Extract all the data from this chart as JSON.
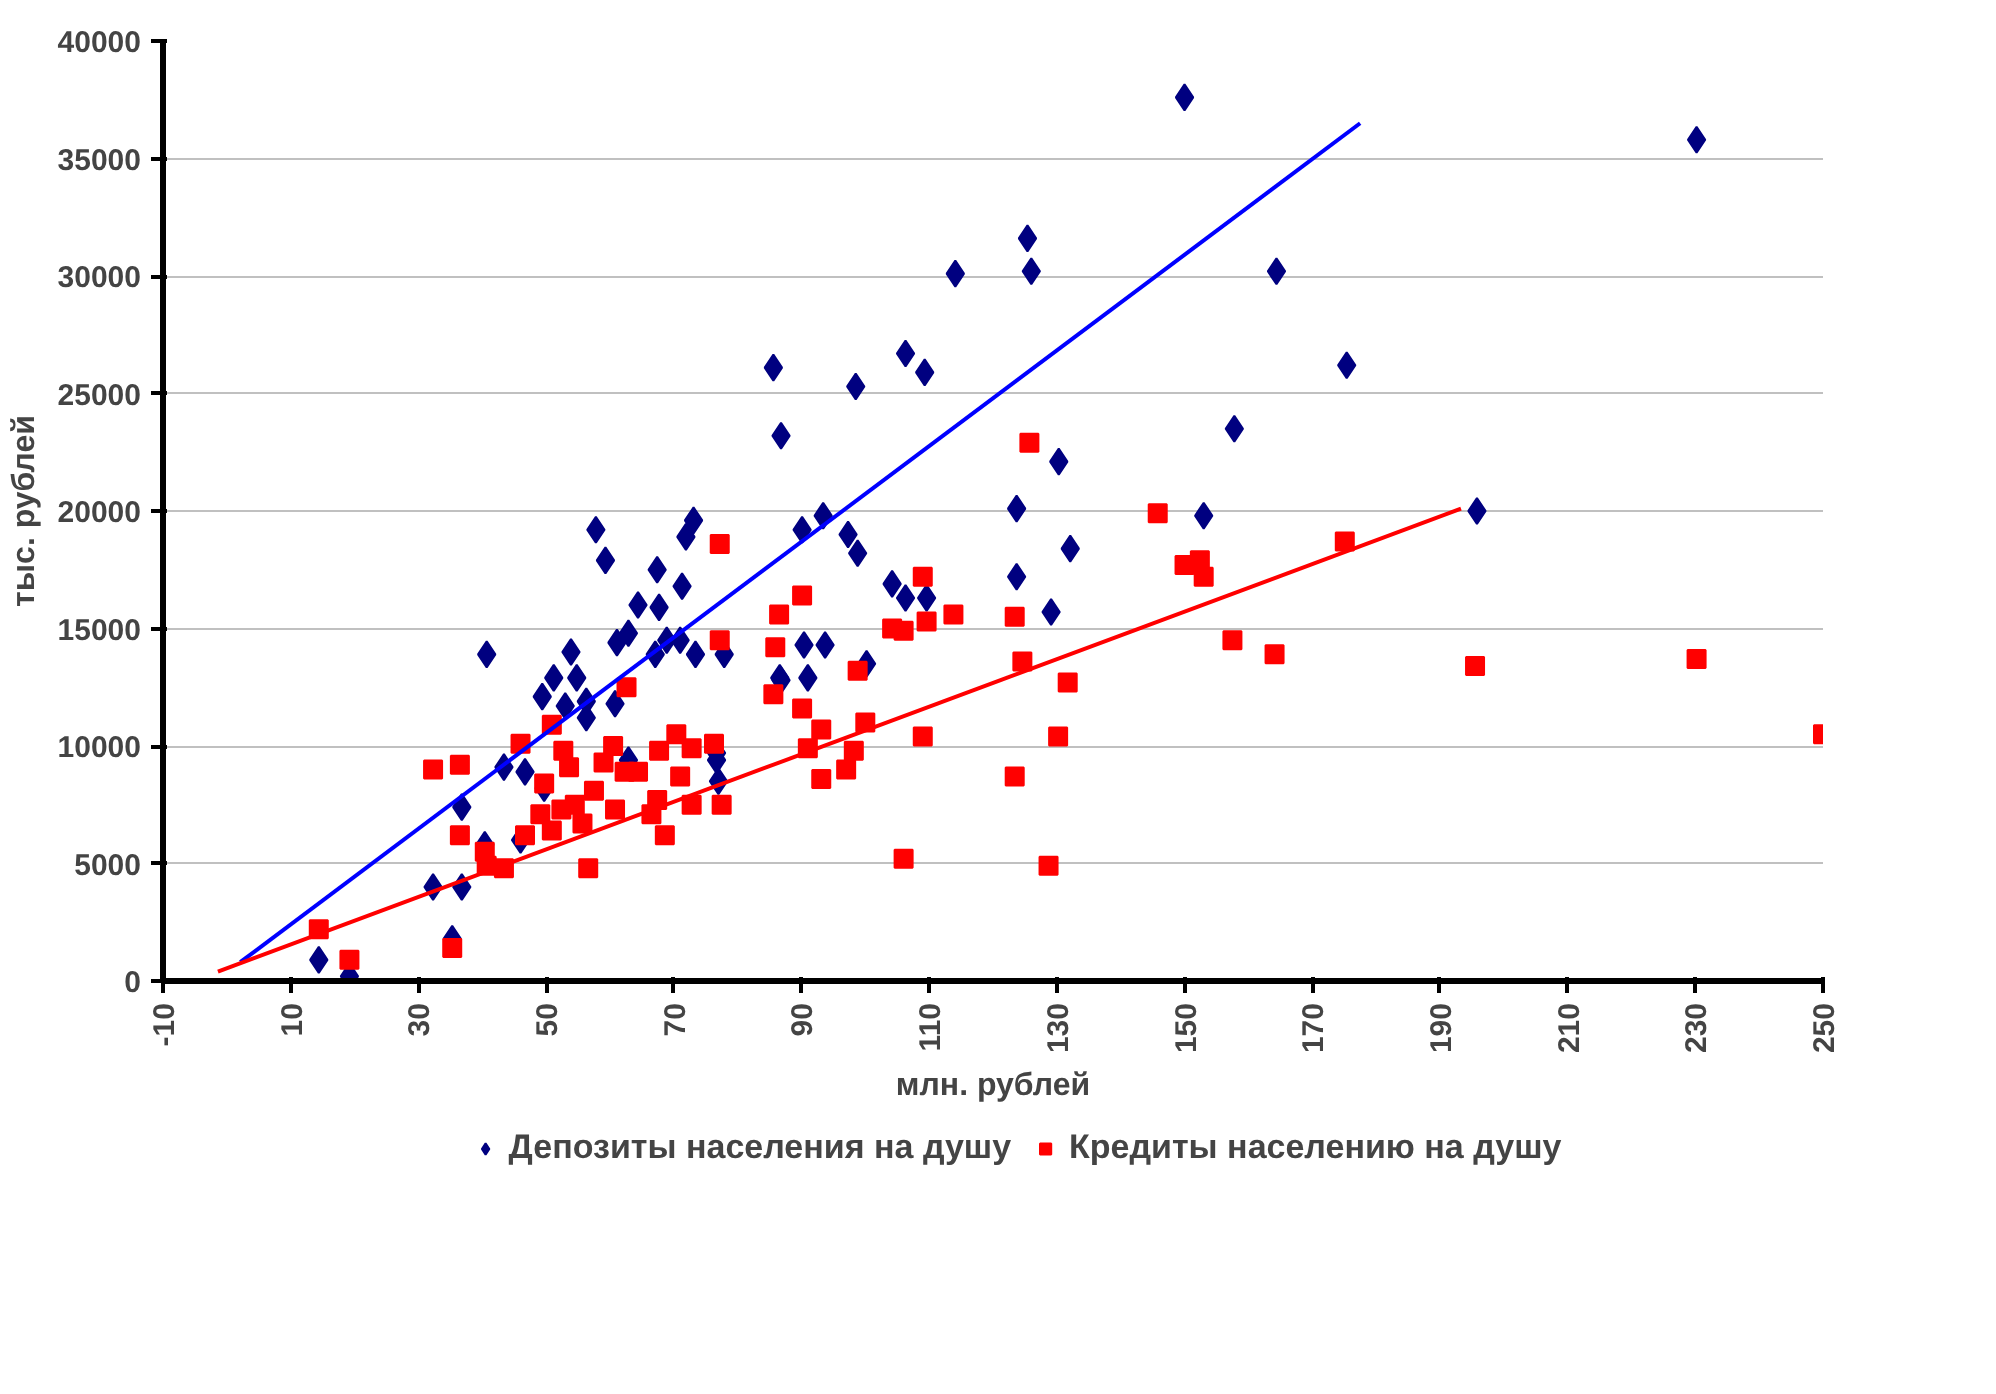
{
  "chart_data": {
    "type": "scatter",
    "xlabel": "млн. рублей",
    "ylabel": "тыс. рублей",
    "xlim": [
      -10,
      250
    ],
    "ylim": [
      0,
      40000
    ],
    "xticks": [
      -10,
      10,
      30,
      50,
      70,
      90,
      110,
      130,
      150,
      170,
      190,
      210,
      230,
      250
    ],
    "yticks": [
      0,
      5000,
      10000,
      15000,
      20000,
      25000,
      30000,
      35000,
      40000
    ],
    "grid": "y",
    "legend": "bottom",
    "series": [
      {
        "name": "Депозиты населения на душу",
        "color": "#000080",
        "marker": "diamond",
        "x": [
          14.4,
          19.2,
          32.3,
          36.8,
          35.3,
          36.8,
          40.7,
          43.4,
          46.7,
          40.4,
          46,
          49.7,
          49.4,
          51.2,
          54.8,
          53.9,
          53,
          56.3,
          56.3,
          60.8,
          57.8,
          59.3,
          61.1,
          62.9,
          64.4,
          67.7,
          67.4,
          71.3,
          73.1,
          71.9,
          67.1,
          68.9,
          71,
          73.4,
          77.9,
          62.9,
          76.7,
          77,
          86.6,
          114.1,
          126,
          125.4,
          85.6,
          86.8,
          98.5,
          106.3,
          109.3,
          123.7,
          130.3,
          157.8,
          132.1,
          123.7,
          129.1,
          93.4,
          90.1,
          97.3,
          98.8,
          104.2,
          106.3,
          109.6,
          90.4,
          93.7,
          86.8,
          91,
          100.2,
          76.7,
          150,
          230.2,
          164.4,
          175.4,
          153,
          195.8
        ],
        "values": [
          900,
          200,
          4000,
          4000,
          1800,
          7400,
          13900,
          9100,
          8900,
          5800,
          6000,
          8200,
          12100,
          12900,
          12900,
          14000,
          11700,
          11900,
          11200,
          11800,
          19200,
          17900,
          14400,
          14800,
          16000,
          15900,
          17500,
          16800,
          19600,
          18900,
          13900,
          14500,
          14500,
          13900,
          13900,
          9400,
          9400,
          8500,
          12900,
          30100,
          30200,
          31600,
          26100,
          23200,
          25300,
          26700,
          25900,
          20100,
          22100,
          23500,
          18400,
          17200,
          15700,
          19800,
          19200,
          19000,
          18200,
          16900,
          16300,
          16300,
          14300,
          14300,
          12800,
          12900,
          13500,
          9700,
          37600,
          35800,
          30200,
          26200,
          19800,
          20000
        ]
      },
      {
        "name": "Кредиты населению на душу",
        "color": "#ff0000",
        "marker": "square",
        "x": [
          14.4,
          19.2,
          35.3,
          32.3,
          36.5,
          36.5,
          40.4,
          40.7,
          43.4,
          56.6,
          46.7,
          46,
          49.7,
          49.1,
          50.9,
          50.9,
          52.7,
          53.6,
          52.4,
          54.5,
          55.7,
          57.5,
          59,
          60.5,
          60.8,
          62.6,
          62.3,
          64.4,
          66.5,
          67.4,
          68.6,
          67.7,
          70.4,
          71,
          72.8,
          72.8,
          76.3,
          77.5,
          77.2,
          77.2,
          86.5,
          85.9,
          85.6,
          125.7,
          145.8,
          150,
          152.4,
          153,
          157.5,
          90.1,
          90.1,
          93.1,
          91,
          93.1,
          97,
          98.2,
          100,
          98.8,
          104.2,
          106,
          109.6,
          109,
          113.8,
          123.4,
          124.6,
          131.7,
          109,
          130.2,
          123.4,
          106,
          128.7,
          164.1,
          175.1,
          195.5,
          230.2,
          250
        ],
        "values": [
          2200,
          900,
          1400,
          9000,
          9200,
          6200,
          5500,
          4900,
          4800,
          4800,
          6200,
          10100,
          8400,
          7100,
          6400,
          10900,
          9800,
          9100,
          7300,
          7500,
          6700,
          8100,
          9300,
          10000,
          7300,
          12500,
          8900,
          8900,
          7100,
          7700,
          6200,
          9800,
          10500,
          8700,
          9900,
          7500,
          10100,
          7500,
          18600,
          14500,
          15600,
          14200,
          12200,
          22900,
          19900,
          17700,
          17900,
          17200,
          14500,
          16400,
          11600,
          10700,
          9900,
          8600,
          9000,
          9800,
          11000,
          13200,
          15000,
          14900,
          15300,
          17200,
          15600,
          15500,
          13600,
          12700,
          10400,
          10400,
          8700,
          5200,
          4900,
          13900,
          18700,
          13400,
          13700,
          10500
        ]
      },
      {
        "type": "line",
        "color": "#0000ff",
        "marker": "none",
        "x": [
          2.1,
          177.5
        ],
        "values": [
          800,
          36500
        ]
      },
      {
        "type": "line",
        "color": "#ff0000",
        "marker": "none",
        "x": [
          -1.4,
          193.3
        ],
        "values": [
          400,
          20100
        ]
      }
    ]
  }
}
